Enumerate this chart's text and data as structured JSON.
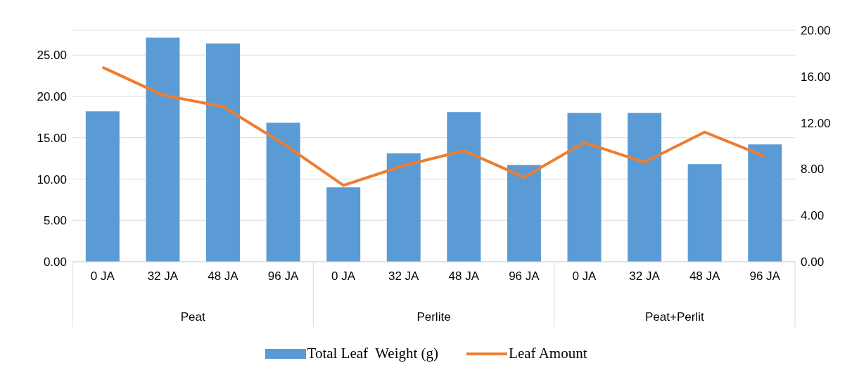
{
  "chart_data": {
    "type": "bar",
    "categories": [
      "0 JA",
      "32 JA",
      "48 JA",
      "96 JA",
      "0 JA",
      "32 JA",
      "48 JA",
      "96 JA",
      "0 JA",
      "32 JA",
      "48 JA",
      "96 JA"
    ],
    "series": [
      {
        "name": "Total Leaf  Weight (g)",
        "color": "#5b9bd5",
        "values": [
          18.2,
          27.1,
          26.4,
          16.8,
          9.0,
          13.1,
          18.1,
          11.7,
          18.0,
          18.0,
          11.8,
          14.2
        ]
      },
      {
        "name": "Leaf Amount",
        "type": "line",
        "axis": "y2",
        "color": "#ed7d31",
        "values": [
          16.8,
          14.4,
          13.4,
          10.2,
          6.6,
          8.3,
          9.6,
          7.3,
          10.3,
          8.6,
          11.2,
          9.1
        ]
      }
    ],
    "annotations": [
      "Peat",
      "Perlite",
      "Peat+Perlit"
    ],
    "ylim": [
      0,
      28
    ],
    "yticks": [
      {
        "value": 0,
        "label": "0.00"
      },
      {
        "value": 5,
        "label": "5.00"
      },
      {
        "value": 10,
        "label": "10.00"
      },
      {
        "value": 15,
        "label": "15.00"
      },
      {
        "value": 20,
        "label": "20.00"
      },
      {
        "value": 25,
        "label": "25.00"
      }
    ],
    "y2lim": [
      0,
      20
    ],
    "y2ticks": [
      {
        "value": 0,
        "label": "0.00"
      },
      {
        "value": 4,
        "label": "4.00"
      },
      {
        "value": 8,
        "label": "8.00"
      },
      {
        "value": 12,
        "label": "12.00"
      },
      {
        "value": 16,
        "label": "16.00"
      },
      {
        "value": 20,
        "label": "20.00"
      }
    ],
    "grid": "y",
    "legend": "bottom",
    "marker": "none",
    "line_style": "solid"
  }
}
